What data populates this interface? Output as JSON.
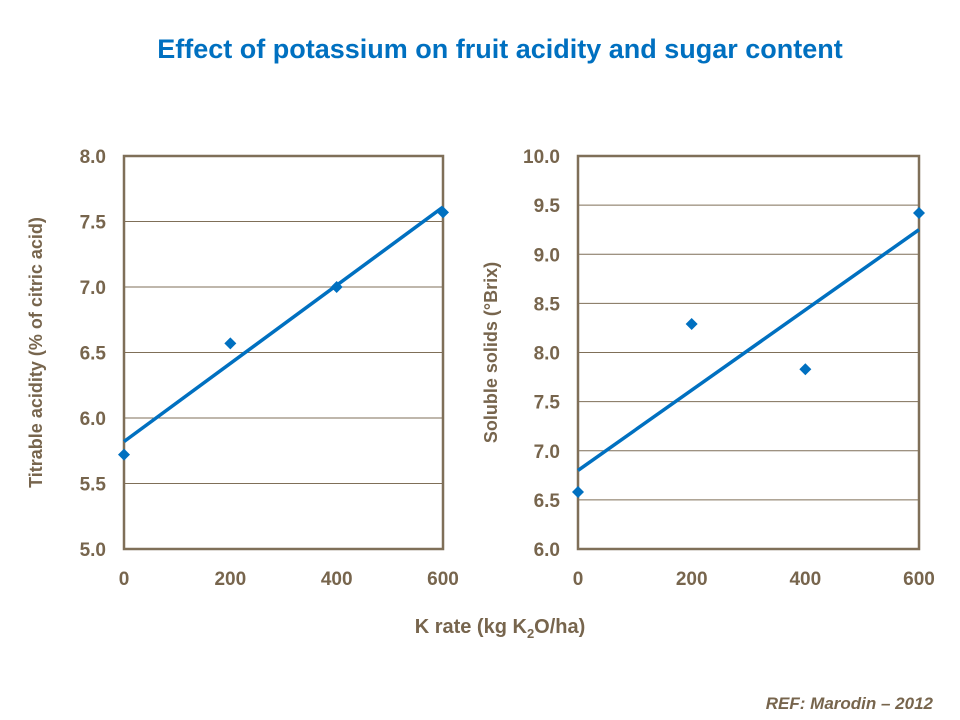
{
  "title": "Effect of potassium on fruit acidity and sugar content",
  "shared_xlabel": {
    "pre": "K rate (kg K",
    "sub": "2",
    "post": "O/ha)"
  },
  "reference": "REF:  Marodin – 2012",
  "colors": {
    "title": "#0070C0",
    "series": "#0070C0",
    "axis": "#77654D"
  },
  "chart_data": [
    {
      "type": "scatter",
      "ylabel": "Titrable acidity (% of citric acid)",
      "xlim": [
        0,
        600
      ],
      "ylim": [
        5.0,
        8.0
      ],
      "xticks": [
        "0",
        "200",
        "400",
        "600"
      ],
      "yticks": [
        "5.0",
        "5.5",
        "6.0",
        "6.5",
        "7.0",
        "7.5",
        "8.0"
      ],
      "grid": "horizontal",
      "x": [
        0,
        200,
        400,
        600
      ],
      "y": [
        5.72,
        6.57,
        7.0,
        7.57
      ],
      "trendline": {
        "type": "linear",
        "x": [
          0,
          600
        ],
        "y": [
          5.82,
          7.61
        ]
      }
    },
    {
      "type": "scatter",
      "ylabel": "Soluble  solids (°Brix)",
      "xlim": [
        0,
        600
      ],
      "ylim": [
        6.0,
        10.0
      ],
      "xticks": [
        "0",
        "200",
        "400",
        "600"
      ],
      "yticks": [
        "6.0",
        "6.5",
        "7.0",
        "7.5",
        "8.0",
        "8.5",
        "9.0",
        "9.5",
        "10.0"
      ],
      "grid": "horizontal",
      "x": [
        0,
        200,
        400,
        600
      ],
      "y": [
        6.58,
        8.29,
        7.83,
        9.42
      ],
      "trendline": {
        "type": "linear",
        "x": [
          0,
          600
        ],
        "y": [
          6.8,
          9.25
        ]
      }
    }
  ]
}
